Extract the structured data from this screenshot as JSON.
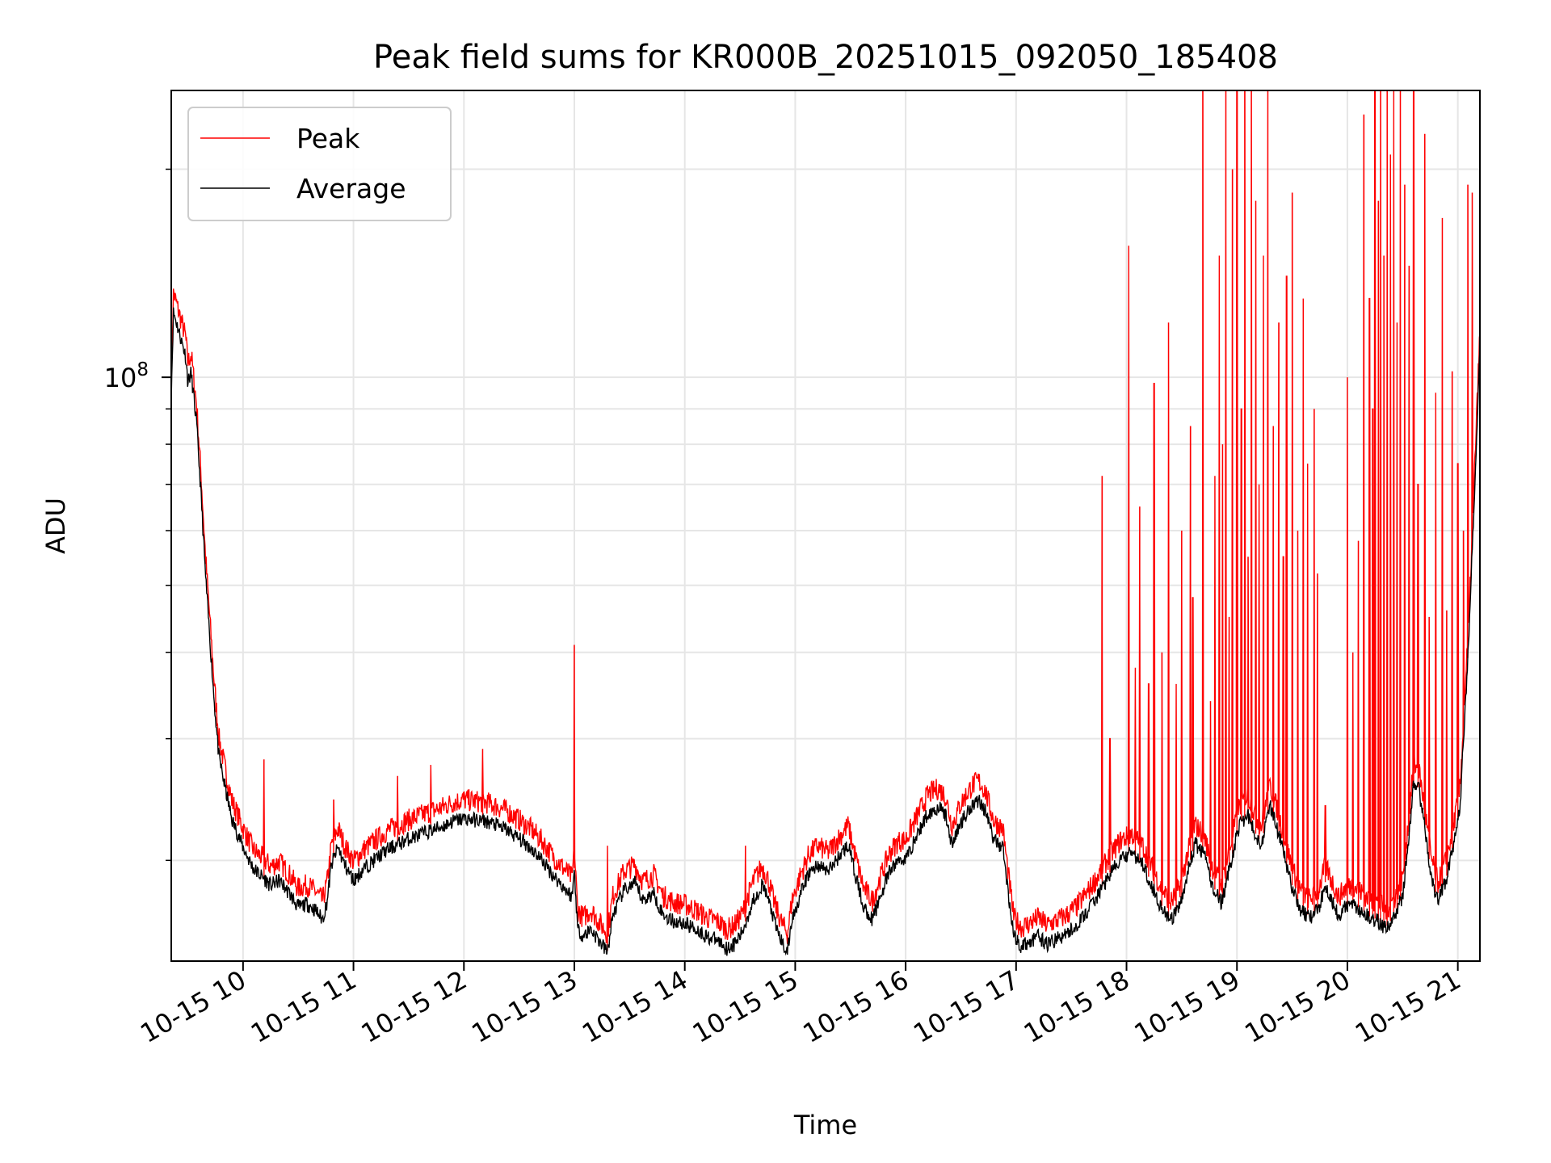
{
  "chart_data": {
    "type": "line",
    "title": "Peak field sums for KR000B_20251015_092050_185408",
    "xlabel": "Time",
    "ylabel": "ADU",
    "yscale": "log",
    "ylim": [
      14300000,
      260000000
    ],
    "xlim_hours": [
      9.35,
      21.2
    ],
    "grid": true,
    "legend_position": "upper left",
    "x_tick_hours": [
      10,
      11,
      12,
      13,
      14,
      15,
      16,
      17,
      18,
      19,
      20,
      21
    ],
    "x_tick_labels": [
      "10-15 10",
      "10-15 11",
      "10-15 12",
      "10-15 13",
      "10-15 14",
      "10-15 15",
      "10-15 16",
      "10-15 17",
      "10-15 18",
      "10-15 19",
      "10-15 20",
      "10-15 21"
    ],
    "y_tick_major": [
      {
        "value": 100000000,
        "base": "10",
        "exp": "8"
      }
    ],
    "y_tick_minor": [
      20000000,
      30000000,
      40000000,
      50000000,
      60000000,
      70000000,
      80000000,
      90000000,
      200000000
    ],
    "series": [
      {
        "name": "Peak",
        "color": "#ff0000",
        "line_width": 0.75,
        "spikes": [
          {
            "t": 10.19,
            "v": 28000000
          },
          {
            "t": 10.82,
            "v": 24500000
          },
          {
            "t": 11.4,
            "v": 26500000
          },
          {
            "t": 11.7,
            "v": 27500000
          },
          {
            "t": 12.17,
            "v": 29000000
          },
          {
            "t": 13.0,
            "v": 41000000
          },
          {
            "t": 13.3,
            "v": 21000000
          },
          {
            "t": 14.55,
            "v": 21000000
          },
          {
            "t": 17.78,
            "v": 72000000
          },
          {
            "t": 17.85,
            "v": 30000000
          },
          {
            "t": 18.02,
            "v": 155000000
          },
          {
            "t": 18.08,
            "v": 38000000
          },
          {
            "t": 18.12,
            "v": 65000000
          },
          {
            "t": 18.2,
            "v": 36000000
          },
          {
            "t": 18.25,
            "v": 98000000
          },
          {
            "t": 18.32,
            "v": 40000000
          },
          {
            "t": 18.38,
            "v": 120000000
          },
          {
            "t": 18.45,
            "v": 36000000
          },
          {
            "t": 18.5,
            "v": 60000000
          },
          {
            "t": 18.58,
            "v": 85000000
          },
          {
            "t": 18.6,
            "v": 48000000
          },
          {
            "t": 18.69,
            "v": 260000000
          },
          {
            "t": 18.76,
            "v": 34000000
          },
          {
            "t": 18.8,
            "v": 72000000
          },
          {
            "t": 18.84,
            "v": 150000000
          },
          {
            "t": 18.87,
            "v": 80000000
          },
          {
            "t": 18.9,
            "v": 260000000
          },
          {
            "t": 18.93,
            "v": 45000000
          },
          {
            "t": 18.96,
            "v": 200000000
          },
          {
            "t": 19.0,
            "v": 260000000
          },
          {
            "t": 19.04,
            "v": 90000000
          },
          {
            "t": 19.07,
            "v": 260000000
          },
          {
            "t": 19.1,
            "v": 55000000
          },
          {
            "t": 19.13,
            "v": 260000000
          },
          {
            "t": 19.17,
            "v": 180000000
          },
          {
            "t": 19.2,
            "v": 70000000
          },
          {
            "t": 19.24,
            "v": 150000000
          },
          {
            "t": 19.28,
            "v": 260000000
          },
          {
            "t": 19.33,
            "v": 85000000
          },
          {
            "t": 19.38,
            "v": 120000000
          },
          {
            "t": 19.42,
            "v": 55000000
          },
          {
            "t": 19.45,
            "v": 140000000
          },
          {
            "t": 19.5,
            "v": 185000000
          },
          {
            "t": 19.55,
            "v": 60000000
          },
          {
            "t": 19.6,
            "v": 130000000
          },
          {
            "t": 19.64,
            "v": 75000000
          },
          {
            "t": 19.7,
            "v": 90000000
          },
          {
            "t": 19.73,
            "v": 52000000
          },
          {
            "t": 19.8,
            "v": 24000000
          },
          {
            "t": 20.0,
            "v": 100000000
          },
          {
            "t": 20.05,
            "v": 40000000
          },
          {
            "t": 20.1,
            "v": 58000000
          },
          {
            "t": 20.15,
            "v": 240000000
          },
          {
            "t": 20.2,
            "v": 130000000
          },
          {
            "t": 20.23,
            "v": 90000000
          },
          {
            "t": 20.25,
            "v": 260000000
          },
          {
            "t": 20.28,
            "v": 180000000
          },
          {
            "t": 20.3,
            "v": 260000000
          },
          {
            "t": 20.33,
            "v": 150000000
          },
          {
            "t": 20.36,
            "v": 260000000
          },
          {
            "t": 20.39,
            "v": 210000000
          },
          {
            "t": 20.42,
            "v": 260000000
          },
          {
            "t": 20.45,
            "v": 120000000
          },
          {
            "t": 20.48,
            "v": 260000000
          },
          {
            "t": 20.52,
            "v": 190000000
          },
          {
            "t": 20.56,
            "v": 145000000
          },
          {
            "t": 20.6,
            "v": 260000000
          },
          {
            "t": 20.64,
            "v": 70000000
          },
          {
            "t": 20.7,
            "v": 225000000
          },
          {
            "t": 20.74,
            "v": 45000000
          },
          {
            "t": 20.8,
            "v": 95000000
          },
          {
            "t": 20.86,
            "v": 170000000
          },
          {
            "t": 20.9,
            "v": 46000000
          },
          {
            "t": 20.95,
            "v": 102000000
          },
          {
            "t": 21.0,
            "v": 75000000
          },
          {
            "t": 21.05,
            "v": 60000000
          },
          {
            "t": 21.09,
            "v": 190000000
          },
          {
            "t": 21.13,
            "v": 185000000
          }
        ]
      },
      {
        "name": "Average",
        "color": "#000000",
        "line_width": 0.75,
        "points": [
          [
            9.35,
            95000000
          ],
          [
            9.37,
            125000000
          ],
          [
            9.42,
            117000000
          ],
          [
            9.48,
            108000000
          ],
          [
            9.5,
            99000000
          ],
          [
            9.53,
            102000000
          ],
          [
            9.58,
            86000000
          ],
          [
            9.62,
            68000000
          ],
          [
            9.66,
            52000000
          ],
          [
            9.7,
            42000000
          ],
          [
            9.74,
            34000000
          ],
          [
            9.78,
            28500000
          ],
          [
            9.84,
            25500000
          ],
          [
            9.9,
            23000000
          ],
          [
            9.96,
            21800000
          ],
          [
            10.0,
            21000000
          ],
          [
            10.05,
            20200000
          ],
          [
            10.1,
            19500000
          ],
          [
            10.18,
            19000000
          ],
          [
            10.25,
            18500000
          ],
          [
            10.33,
            18800000
          ],
          [
            10.42,
            18000000
          ],
          [
            10.5,
            17200000
          ],
          [
            10.58,
            17400000
          ],
          [
            10.66,
            17000000
          ],
          [
            10.72,
            16500000
          ],
          [
            10.76,
            17500000
          ],
          [
            10.8,
            19800000
          ],
          [
            10.86,
            21000000
          ],
          [
            10.92,
            19800000
          ],
          [
            11.0,
            18800000
          ],
          [
            11.1,
            19600000
          ],
          [
            11.2,
            20200000
          ],
          [
            11.3,
            20800000
          ],
          [
            11.4,
            21200000
          ],
          [
            11.5,
            21600000
          ],
          [
            11.6,
            21900000
          ],
          [
            11.7,
            22200000
          ],
          [
            11.8,
            22500000
          ],
          [
            11.9,
            22900000
          ],
          [
            12.0,
            23100000
          ],
          [
            12.1,
            23000000
          ],
          [
            12.2,
            22900000
          ],
          [
            12.3,
            22600000
          ],
          [
            12.4,
            22200000
          ],
          [
            12.5,
            21600000
          ],
          [
            12.6,
            21000000
          ],
          [
            12.7,
            20200000
          ],
          [
            12.8,
            19200000
          ],
          [
            12.9,
            18400000
          ],
          [
            12.98,
            17800000
          ],
          [
            13.0,
            19500000
          ],
          [
            13.03,
            16000000
          ],
          [
            13.08,
            15600000
          ],
          [
            13.15,
            16000000
          ],
          [
            13.22,
            15400000
          ],
          [
            13.3,
            14800000
          ],
          [
            13.35,
            16800000
          ],
          [
            13.45,
            18200000
          ],
          [
            13.55,
            18600000
          ],
          [
            13.62,
            17600000
          ],
          [
            13.72,
            18000000
          ],
          [
            13.8,
            16800000
          ],
          [
            13.9,
            16400000
          ],
          [
            14.0,
            16300000
          ],
          [
            14.1,
            16000000
          ],
          [
            14.2,
            15600000
          ],
          [
            14.3,
            15400000
          ],
          [
            14.38,
            15000000
          ],
          [
            14.45,
            15200000
          ],
          [
            14.52,
            15800000
          ],
          [
            14.62,
            17600000
          ],
          [
            14.7,
            18500000
          ],
          [
            14.75,
            17800000
          ],
          [
            14.82,
            16200000
          ],
          [
            14.88,
            15300000
          ],
          [
            14.93,
            14800000
          ],
          [
            14.97,
            16500000
          ],
          [
            15.05,
            18000000
          ],
          [
            15.12,
            19200000
          ],
          [
            15.2,
            19800000
          ],
          [
            15.3,
            19400000
          ],
          [
            15.4,
            20400000
          ],
          [
            15.48,
            21200000
          ],
          [
            15.55,
            19000000
          ],
          [
            15.62,
            17200000
          ],
          [
            15.7,
            16500000
          ],
          [
            15.78,
            18000000
          ],
          [
            15.85,
            19300000
          ],
          [
            15.93,
            20100000
          ],
          [
            16.0,
            20200000
          ],
          [
            16.1,
            21800000
          ],
          [
            16.2,
            23500000
          ],
          [
            16.3,
            24000000
          ],
          [
            16.36,
            23400000
          ],
          [
            16.42,
            21200000
          ],
          [
            16.5,
            22800000
          ],
          [
            16.6,
            24200000
          ],
          [
            16.66,
            24600000
          ],
          [
            16.72,
            23800000
          ],
          [
            16.8,
            21500000
          ],
          [
            16.88,
            21000000
          ],
          [
            16.93,
            18000000
          ],
          [
            16.98,
            15600000
          ],
          [
            17.05,
            15100000
          ],
          [
            17.12,
            15300000
          ],
          [
            17.2,
            15600000
          ],
          [
            17.28,
            15200000
          ],
          [
            17.35,
            15400000
          ],
          [
            17.45,
            15700000
          ],
          [
            17.55,
            16200000
          ],
          [
            17.65,
            17000000
          ],
          [
            17.75,
            18000000
          ],
          [
            17.85,
            19200000
          ],
          [
            17.95,
            20200000
          ],
          [
            18.05,
            20600000
          ],
          [
            18.15,
            19800000
          ],
          [
            18.22,
            18600000
          ],
          [
            18.3,
            17400000
          ],
          [
            18.4,
            16400000
          ],
          [
            18.48,
            17200000
          ],
          [
            18.55,
            19200000
          ],
          [
            18.62,
            21200000
          ],
          [
            18.7,
            20600000
          ],
          [
            18.78,
            18400000
          ],
          [
            18.86,
            17400000
          ],
          [
            18.94,
            19800000
          ],
          [
            19.02,
            22600000
          ],
          [
            19.1,
            23400000
          ],
          [
            19.16,
            22000000
          ],
          [
            19.22,
            21200000
          ],
          [
            19.3,
            24200000
          ],
          [
            19.36,
            22500000
          ],
          [
            19.42,
            20600000
          ],
          [
            19.5,
            18400000
          ],
          [
            19.58,
            17000000
          ],
          [
            19.66,
            16600000
          ],
          [
            19.74,
            17100000
          ],
          [
            19.8,
            18600000
          ],
          [
            19.86,
            17600000
          ],
          [
            19.92,
            16700000
          ],
          [
            19.98,
            17200000
          ],
          [
            20.05,
            17400000
          ],
          [
            20.12,
            17000000
          ],
          [
            20.2,
            16600000
          ],
          [
            20.28,
            16400000
          ],
          [
            20.35,
            16000000
          ],
          [
            20.42,
            16600000
          ],
          [
            20.5,
            17800000
          ],
          [
            20.56,
            22000000
          ],
          [
            20.6,
            26000000
          ],
          [
            20.65,
            25400000
          ],
          [
            20.7,
            22400000
          ],
          [
            20.76,
            19000000
          ],
          [
            20.82,
            17500000
          ],
          [
            20.9,
            19000000
          ],
          [
            20.96,
            21200000
          ],
          [
            21.02,
            24000000
          ],
          [
            21.06,
            32000000
          ],
          [
            21.1,
            42000000
          ],
          [
            21.14,
            62000000
          ],
          [
            21.2,
            110000000
          ]
        ]
      }
    ]
  }
}
